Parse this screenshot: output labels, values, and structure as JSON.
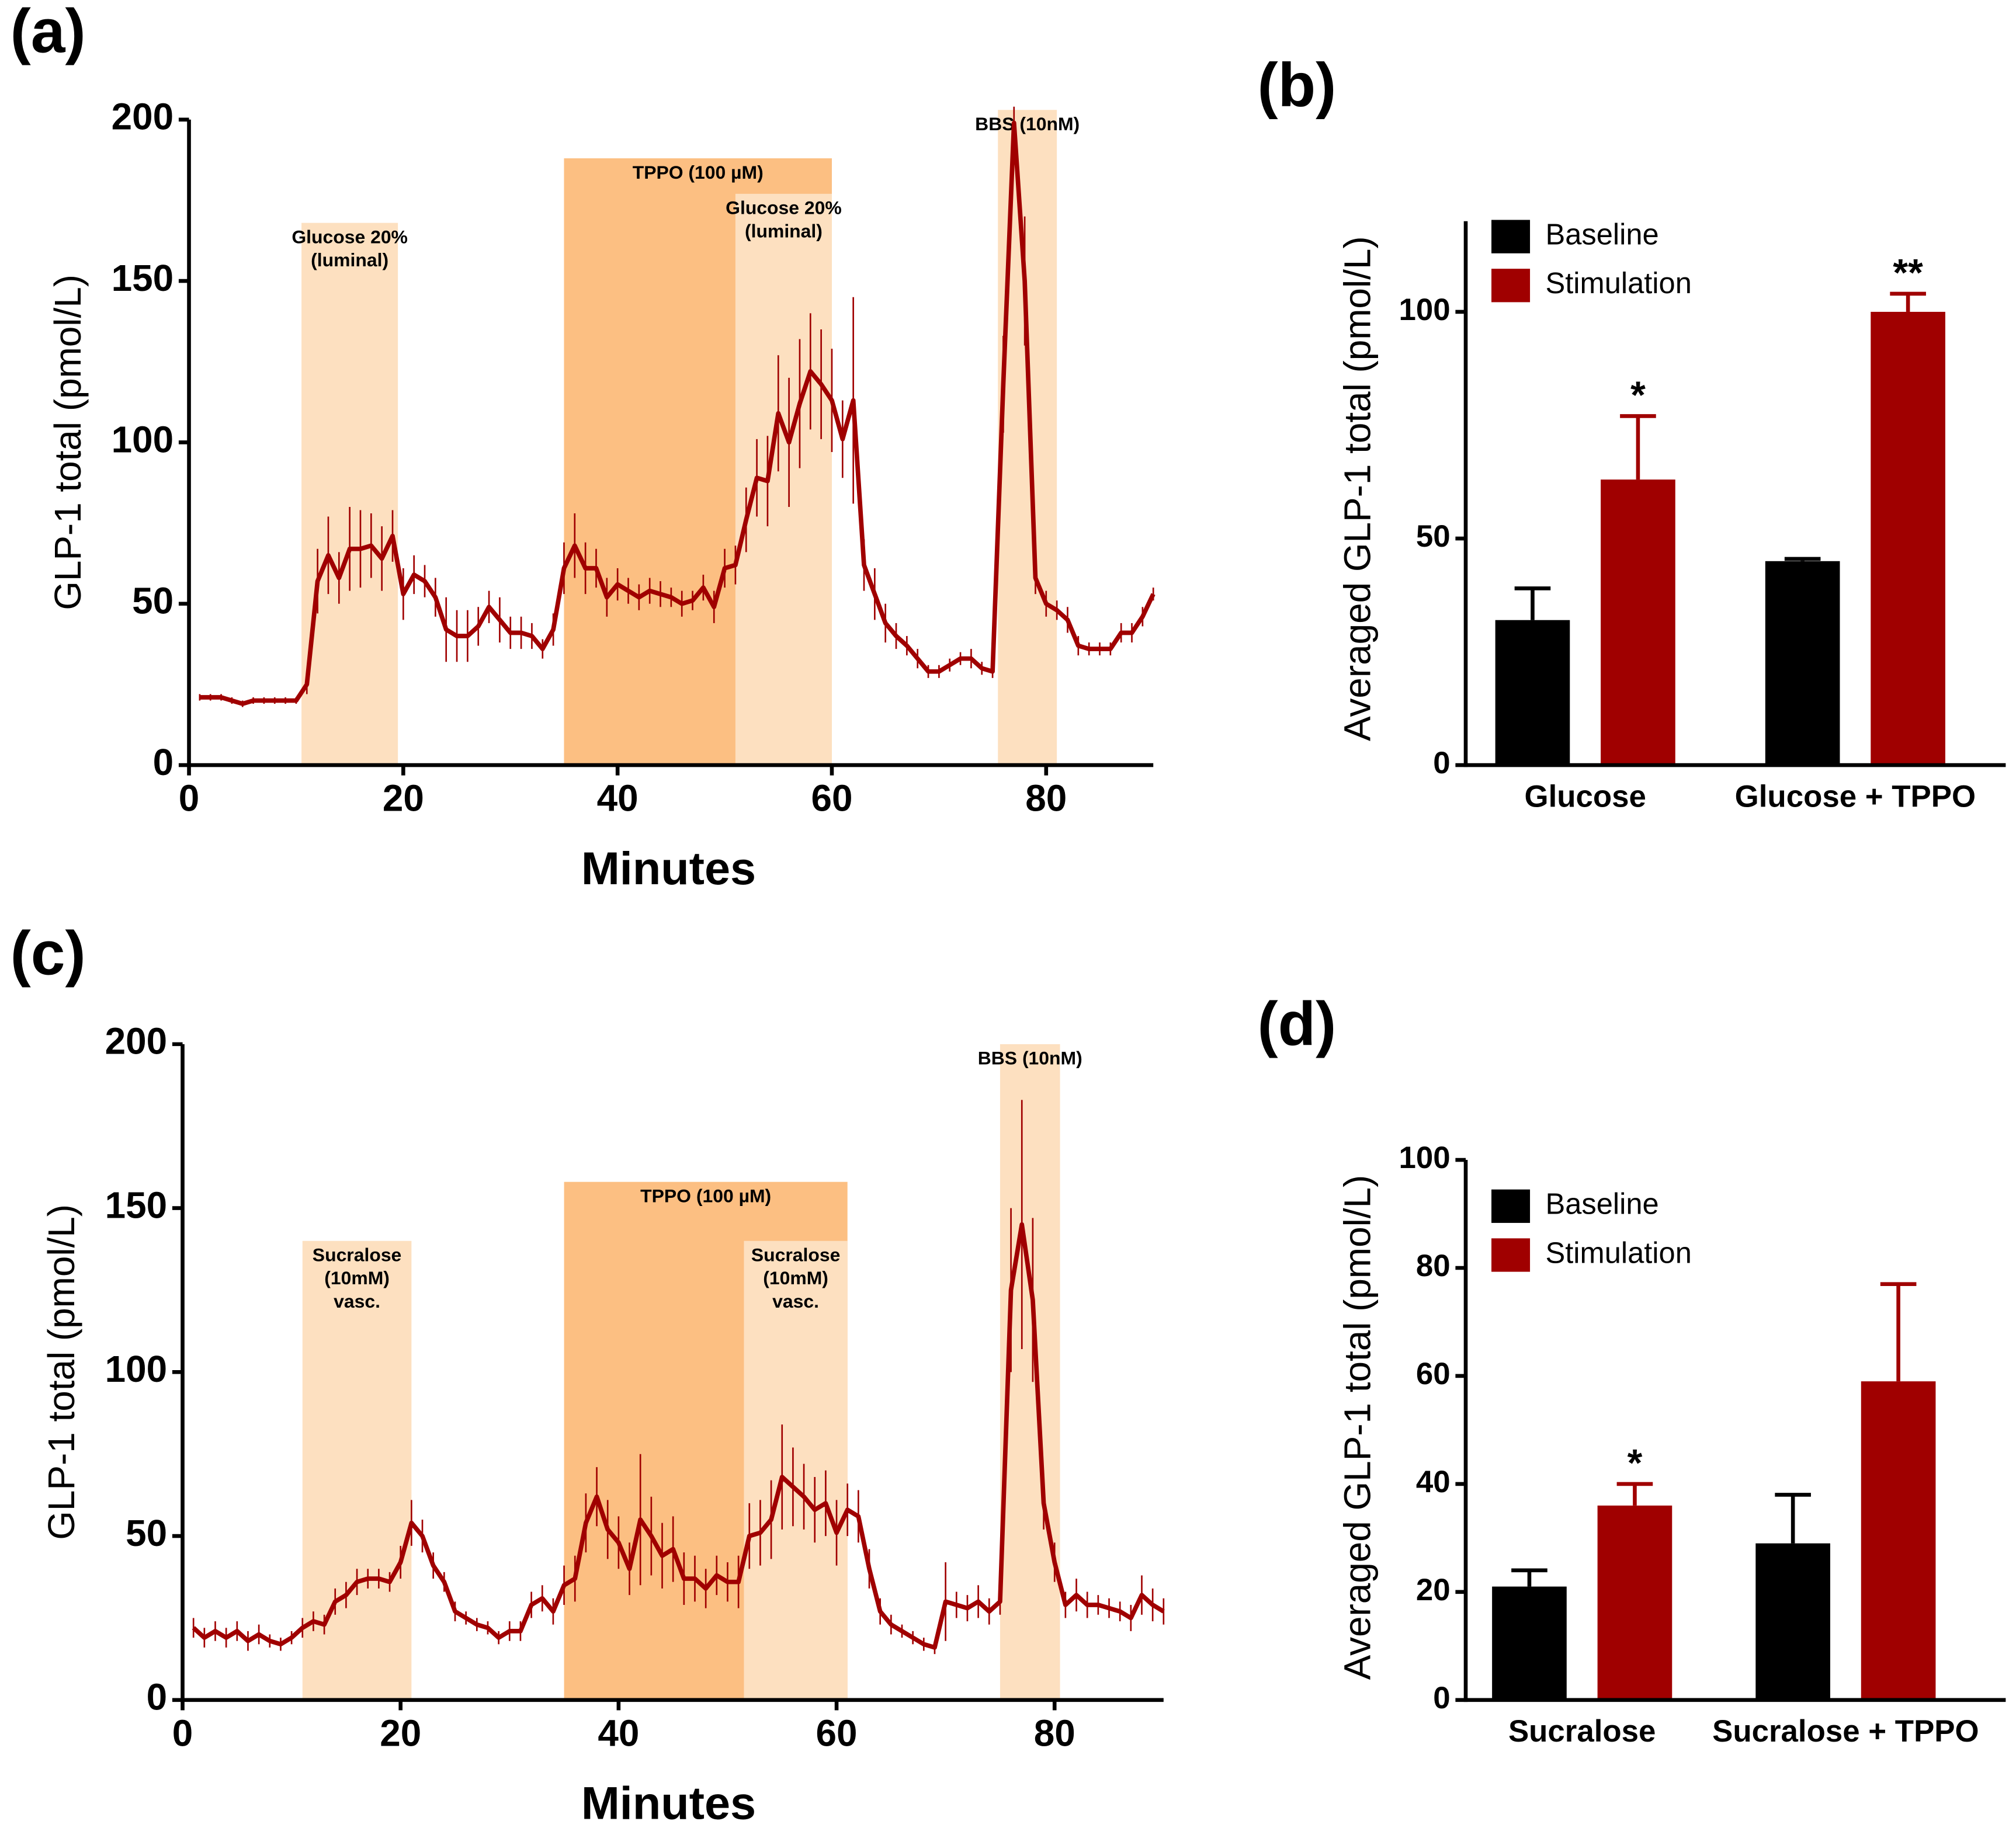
{
  "chart_data": [
    {
      "type": "line",
      "panel": "(a)",
      "y_label": "GLP-1 total (pmol/L)",
      "x_label": "Minutes",
      "xlim": [
        0,
        90
      ],
      "xticks": [
        0,
        20,
        40,
        60,
        80
      ],
      "ylim": [
        0,
        200
      ],
      "yticks": [
        0,
        50,
        100,
        150,
        200
      ],
      "color": "#a00000",
      "regions": [
        {
          "label": [
            "Glucose 20%",
            "(luminal)"
          ],
          "start": 10.5,
          "end": 19.5,
          "top": 168,
          "color": "#fde0c0"
        },
        {
          "label": [
            "TPPO (100 µM)"
          ],
          "start": 35,
          "end": 60,
          "top": 188,
          "color": "#fcbf82"
        },
        {
          "label": [
            "Glucose 20%",
            "(luminal)"
          ],
          "start": 51,
          "end": 60,
          "top": 177,
          "color": "#fde0c0"
        },
        {
          "label": [
            "BBS (10nM)"
          ],
          "start": 75.5,
          "end": 81,
          "top": 203,
          "color": "#fde0c0"
        }
      ],
      "x": [
        1,
        2,
        3,
        4,
        5,
        6,
        7,
        8,
        9,
        10,
        11,
        12,
        13,
        14,
        15,
        16,
        17,
        18,
        19,
        20,
        21,
        22,
        23,
        24,
        25,
        26,
        27,
        28,
        29,
        30,
        31,
        32,
        33,
        34,
        35,
        36,
        37,
        38,
        39,
        40,
        41,
        42,
        43,
        44,
        45,
        46,
        47,
        48,
        49,
        50,
        51,
        52,
        53,
        54,
        55,
        56,
        57,
        58,
        59,
        60,
        61,
        62,
        63,
        64,
        65,
        66,
        67,
        68,
        69,
        70,
        71,
        72,
        73,
        74,
        75,
        76,
        77,
        78,
        79,
        80,
        81,
        82,
        83,
        84,
        85,
        86,
        87,
        88,
        89,
        90
      ],
      "values": [
        21,
        21,
        21,
        20,
        19,
        20,
        20,
        20,
        20,
        20,
        25,
        57,
        65,
        58,
        67,
        67,
        68,
        64,
        71,
        53,
        59,
        57,
        52,
        42,
        40,
        40,
        43,
        49,
        45,
        41,
        41,
        40,
        36,
        42,
        61,
        68,
        61,
        61,
        52,
        56,
        54,
        52,
        54,
        53,
        52,
        50,
        51,
        55,
        49,
        61,
        62,
        76,
        89,
        88,
        109,
        100,
        112,
        122,
        118,
        113,
        101,
        113,
        62,
        53,
        44,
        40,
        37,
        33,
        29,
        29,
        31,
        33,
        33,
        30,
        29,
        118,
        199,
        150,
        58,
        50,
        48,
        45,
        37,
        36,
        36,
        36,
        41,
        41,
        46,
        53
      ],
      "errors": [
        1,
        1,
        1,
        1,
        1,
        1,
        1,
        1,
        1,
        1,
        3,
        10,
        12,
        8,
        13,
        12,
        10,
        10,
        8,
        8,
        6,
        5,
        6,
        10,
        8,
        8,
        6,
        5,
        7,
        5,
        5,
        4,
        3,
        5,
        8,
        10,
        8,
        6,
        6,
        5,
        4,
        4,
        4,
        4,
        3,
        4,
        3,
        4,
        5,
        6,
        6,
        10,
        12,
        14,
        18,
        20,
        20,
        18,
        17,
        16,
        12,
        32,
        8,
        8,
        6,
        4,
        3,
        3,
        2,
        2,
        2,
        2,
        3,
        2,
        2,
        15,
        5,
        20,
        5,
        4,
        3,
        4,
        3,
        2,
        2,
        2,
        3,
        3,
        3,
        2
      ]
    },
    {
      "type": "bar",
      "panel": "(b)",
      "y_label": "Averaged GLP-1 total (pmol/L)",
      "categories": [
        "Glucose",
        "Glucose + TPPO"
      ],
      "ylim": [
        0,
        120
      ],
      "yticks": [
        0,
        50,
        100
      ],
      "series": [
        {
          "name": "Baseline",
          "color": "#000000",
          "values": [
            32,
            45
          ],
          "errors": [
            7,
            0.5
          ]
        },
        {
          "name": "Stimulation",
          "color": "#a00000",
          "values": [
            63,
            100
          ],
          "errors": [
            14,
            4
          ],
          "significance": [
            "*",
            "**"
          ]
        }
      ]
    },
    {
      "type": "line",
      "panel": "(c)",
      "y_label": "GLP-1 total (pmol/L)",
      "x_label": "Minutes",
      "xlim": [
        0,
        90
      ],
      "xticks": [
        0,
        20,
        40,
        60,
        80
      ],
      "ylim": [
        0,
        200
      ],
      "yticks": [
        0,
        50,
        100,
        150,
        200
      ],
      "color": "#a00000",
      "regions": [
        {
          "label": [
            "Sucralose",
            "(10mM)",
            "vasc."
          ],
          "start": 11,
          "end": 21,
          "top": 140,
          "color": "#fde0c0"
        },
        {
          "label": [
            "TPPO (100 µM)"
          ],
          "start": 35,
          "end": 61,
          "top": 158,
          "color": "#fcbf82"
        },
        {
          "label": [
            "Sucralose",
            "(10mM)",
            "vasc."
          ],
          "start": 51.5,
          "end": 61,
          "top": 140,
          "color": "#fde0c0"
        },
        {
          "label": [
            "BBS (10nM)"
          ],
          "start": 75,
          "end": 80.5,
          "top": 200,
          "color": "#fde0c0"
        }
      ],
      "x": [
        1,
        2,
        3,
        4,
        5,
        6,
        7,
        8,
        9,
        10,
        11,
        12,
        13,
        14,
        15,
        16,
        17,
        18,
        19,
        20,
        21,
        22,
        23,
        24,
        25,
        26,
        27,
        28,
        29,
        30,
        31,
        32,
        33,
        34,
        35,
        36,
        37,
        38,
        39,
        40,
        41,
        42,
        43,
        44,
        45,
        46,
        47,
        48,
        49,
        50,
        51,
        52,
        53,
        54,
        55,
        56,
        57,
        58,
        59,
        60,
        61,
        62,
        63,
        64,
        65,
        66,
        67,
        68,
        69,
        70,
        71,
        72,
        73,
        74,
        75,
        76,
        77,
        78,
        79,
        80,
        81,
        82,
        83,
        84,
        85,
        86,
        87,
        88,
        89,
        90
      ],
      "values": [
        22,
        19,
        21,
        19,
        21,
        18,
        20,
        18,
        17,
        19,
        22,
        24,
        23,
        30,
        32,
        36,
        37,
        37,
        36,
        42,
        54,
        50,
        41,
        36,
        27,
        25,
        23,
        22,
        19,
        21,
        21,
        29,
        31,
        27,
        35,
        37,
        54,
        62,
        52,
        48,
        40,
        55,
        50,
        44,
        46,
        37,
        37,
        34,
        38,
        36,
        36,
        50,
        51,
        55,
        68,
        65,
        62,
        58,
        60,
        51,
        58,
        56,
        40,
        27,
        23,
        21,
        19,
        17,
        16,
        30,
        29,
        28,
        30,
        27,
        30,
        125,
        145,
        122,
        60,
        42,
        29,
        32,
        29,
        29,
        28,
        27,
        25,
        32,
        29,
        27
      ],
      "errors": [
        3,
        3,
        3,
        3,
        3,
        3,
        3,
        2,
        2,
        2,
        3,
        3,
        3,
        4,
        4,
        4,
        3,
        3,
        3,
        5,
        7,
        5,
        4,
        3,
        3,
        2,
        2,
        2,
        2,
        3,
        3,
        4,
        4,
        4,
        6,
        7,
        9,
        9,
        9,
        8,
        8,
        20,
        12,
        10,
        10,
        8,
        7,
        6,
        6,
        6,
        8,
        10,
        10,
        12,
        16,
        12,
        10,
        10,
        10,
        10,
        8,
        8,
        6,
        4,
        3,
        2,
        2,
        2,
        2,
        12,
        4,
        4,
        5,
        4,
        4,
        25,
        38,
        25,
        8,
        6,
        4,
        5,
        4,
        3,
        3,
        3,
        4,
        6,
        5,
        4
      ]
    },
    {
      "type": "bar",
      "panel": "(d)",
      "y_label": "Averaged GLP-1 total (pmol/L)",
      "categories": [
        "Sucralose",
        "Sucralose + TPPO"
      ],
      "ylim": [
        0,
        100
      ],
      "yticks": [
        0,
        20,
        40,
        60,
        80,
        100
      ],
      "series": [
        {
          "name": "Baseline",
          "color": "#000000",
          "values": [
            21,
            29
          ],
          "errors": [
            3,
            9
          ]
        },
        {
          "name": "Stimulation",
          "color": "#a00000",
          "values": [
            36,
            59
          ],
          "errors": [
            4,
            18
          ],
          "significance": [
            "*",
            null
          ]
        }
      ]
    }
  ]
}
